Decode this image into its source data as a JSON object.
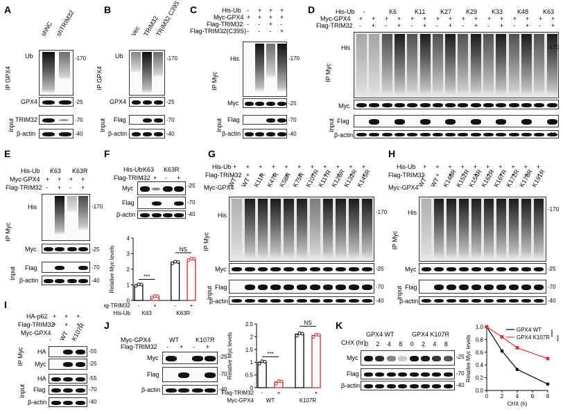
{
  "panels": {
    "A": {
      "letter": "A",
      "lanes": [
        "shNC",
        "shTRIM32"
      ],
      "ip": "IP GPX4",
      "input": "Input",
      "blots": [
        "Ub",
        "GPX4",
        "TRIM32",
        "β-actin"
      ],
      "mw": [
        "-170",
        "-25",
        "-70",
        "-40"
      ]
    },
    "B": {
      "letter": "B",
      "lanes": [
        "Vec",
        "TRIM32",
        "TRIM32 C39S"
      ],
      "ip": "IP GPX4",
      "input": "Input",
      "blots": [
        "Ub",
        "GPX4",
        "Flag",
        "β-actin"
      ],
      "mw": [
        "-170",
        "-25",
        "-70",
        "-40"
      ]
    },
    "C": {
      "letter": "C",
      "rows": [
        "His-Ub",
        "Myc-GPX4",
        "Flag-TRIM32",
        "Flag-TRIM32(C39S)"
      ],
      "signs": [
        [
          "-",
          "+",
          "+",
          "+"
        ],
        [
          "+",
          "+",
          "+",
          "+"
        ],
        [
          "-",
          "-",
          "+",
          "-"
        ],
        [
          "-",
          "-",
          "-",
          "+"
        ]
      ],
      "ip": "IP Myc",
      "input": "Input",
      "blots": [
        "His",
        "Myc",
        "Flag",
        "β-actin"
      ],
      "mw": [
        "-170",
        "-25",
        "-70",
        "-40"
      ]
    },
    "D": {
      "letter": "D",
      "rows": [
        "His-Ub",
        "Myc-GPX4",
        "Flag-TRIM32"
      ],
      "groups": [
        "-",
        "K6",
        "K11",
        "K27",
        "K29",
        "K33",
        "K48",
        "K63"
      ],
      "ip": "IP Myc",
      "input": "Input",
      "blots": [
        "His",
        "Myc",
        "Flag",
        "β-actin"
      ],
      "mw": [
        "-170",
        "-25",
        "-70",
        "-40"
      ]
    },
    "E": {
      "letter": "E",
      "rows": [
        "His-Ub",
        "Myc-GPX4",
        "Flag-TRIM32"
      ],
      "groups": [
        "K63",
        "K63R"
      ],
      "ip": "IP Myc",
      "input": "Input",
      "blots": [
        "His",
        "Myc",
        "Flag",
        "β-actin"
      ],
      "mw": [
        "-170",
        "-25",
        "-70",
        "-40"
      ]
    },
    "F": {
      "letter": "F",
      "rows": [
        "His-Ub",
        "Flag-TRIM32"
      ],
      "groups": [
        "K63",
        "K63R"
      ],
      "blots": [
        "Myc",
        "Flag",
        "β-actin"
      ],
      "mw": [
        "-25",
        "-70",
        "-40"
      ]
    },
    "G": {
      "letter": "G",
      "rows": [
        "His-Ub",
        "Flag-TRIM32",
        "Myc-GPX4"
      ],
      "lanes": [
        "WT",
        "WT",
        "K11R",
        "K47R",
        "K58R",
        "K75R",
        "K107R",
        "K117R",
        "K126R",
        "K132R",
        "K145R"
      ],
      "ip": "IP Myc",
      "input": "Input",
      "blots": [
        "His",
        "Myc",
        "Flag",
        "β-actin"
      ],
      "mw": [
        "-170",
        "-25",
        "-70",
        "-40"
      ]
    },
    "H": {
      "letter": "H",
      "rows": [
        "His-Ub",
        "Flag-TRIM32",
        "Myc-GPX4"
      ],
      "lanes": [
        "WT",
        "WT",
        "K148R",
        "K152R",
        "K154R",
        "K162R",
        "K167R",
        "K172R",
        "K178R",
        "K191R"
      ],
      "ip": "IP Myc",
      "input": "Input",
      "blots": [
        "His",
        "Myc",
        "Flag",
        "β-actin"
      ],
      "mw": [
        "-170",
        "-25",
        "-70",
        "-40"
      ]
    },
    "I": {
      "letter": "I",
      "rows": [
        "HA-p62",
        "Flag-TRIM32",
        "Myc-GPX4"
      ],
      "lanes": [
        "-",
        "WT",
        "K107R"
      ],
      "ip": "IP Myc",
      "input": "Input",
      "blots": [
        "HA",
        "Myc",
        "HA",
        "Flag",
        "β-actin"
      ],
      "mw": [
        "-55",
        "-25",
        "-55",
        "-70",
        "-40"
      ]
    },
    "J": {
      "letter": "J",
      "rows": [
        "Myc-GPX4",
        "Flag-TRIM32"
      ],
      "groups": [
        "WT",
        "K107R"
      ],
      "blots": [
        "Myc",
        "Flag",
        "β-actin"
      ],
      "mw": [
        "-25",
        "-70",
        "-40"
      ]
    },
    "K": {
      "letter": "K",
      "groups": [
        "GPX4 WT",
        "GPX4 K107R"
      ],
      "cond": "CHX (hr)",
      "times": [
        "0",
        "2",
        "4",
        "8"
      ],
      "blots": [
        "Myc",
        "Flag",
        "β-actin"
      ],
      "mw": [
        "-25",
        "-70",
        "-40"
      ]
    }
  },
  "chart_data": [
    {
      "type": "bar",
      "id": "F",
      "ylabel": "Relative Myc levels",
      "ylim": [
        0,
        4
      ],
      "yticks": [
        0,
        1,
        2,
        3,
        4
      ],
      "categories": [
        "K63 -",
        "K63 +",
        "K63R -",
        "K63R +"
      ],
      "values": [
        1.0,
        0.25,
        2.45,
        2.65
      ],
      "bar_colors": [
        "#000000",
        "#d62728",
        "#000000",
        "#d62728"
      ],
      "xrow1_label": "Flag-TRIM32",
      "xrow1": [
        "-",
        "+",
        "-",
        "+"
      ],
      "xrow2_label": "His-Ub",
      "xrow2": [
        "K63",
        "K63R"
      ],
      "annotations": [
        "***",
        "NS"
      ]
    },
    {
      "type": "bar",
      "id": "J",
      "ylabel": "Relative Myc levels",
      "ylim": [
        0,
        2.5
      ],
      "yticks": [
        0,
        0.5,
        1.0,
        1.5,
        2.0,
        2.5
      ],
      "categories": [
        "WT -",
        "WT +",
        "K107R -",
        "K107R +"
      ],
      "values": [
        1.0,
        0.22,
        2.1,
        2.05
      ],
      "bar_colors": [
        "#000000",
        "#d62728",
        "#000000",
        "#d62728"
      ],
      "xrow1_label": "Flag-TRIM32",
      "xrow1": [
        "-",
        "+",
        "-",
        "+"
      ],
      "xrow2_label": "Myc-GPX4",
      "xrow2": [
        "WT",
        "K107R"
      ],
      "annotations": [
        "***",
        "NS"
      ]
    },
    {
      "type": "line",
      "id": "K",
      "ylabel": "Relative Myc levels",
      "xlabel": "CHX (h)",
      "x": [
        0,
        2,
        4,
        6,
        8
      ],
      "xticks": [
        0,
        2,
        4,
        6,
        8
      ],
      "ylim": [
        0,
        1.0
      ],
      "yticks": [
        0,
        0.2,
        0.4,
        0.6,
        0.8,
        1.0
      ],
      "series": [
        {
          "name": "GPX4 WT",
          "color": "#000000",
          "x": [
            0,
            2,
            4,
            8
          ],
          "values": [
            1.0,
            0.62,
            0.33,
            0.1
          ]
        },
        {
          "name": "GPX4 K107R",
          "color": "#e03030",
          "x": [
            0,
            2,
            4,
            8
          ],
          "values": [
            1.0,
            0.84,
            0.67,
            0.5
          ]
        }
      ],
      "annotations": [
        "***"
      ]
    }
  ]
}
